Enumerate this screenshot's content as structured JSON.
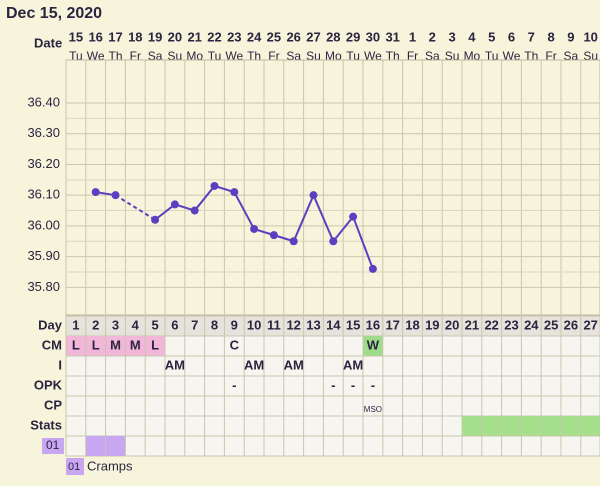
{
  "header": {
    "title": "Dec 15, 2020"
  },
  "chart_data": {
    "type": "line",
    "x_label": "Date",
    "categories": [
      "15",
      "16",
      "17",
      "18",
      "19",
      "20",
      "21",
      "22",
      "23",
      "24",
      "25",
      "26",
      "27",
      "28",
      "29",
      "30",
      "31",
      "1",
      "2",
      "3",
      "4",
      "5",
      "6",
      "7",
      "8",
      "9",
      "10"
    ],
    "weekdays": [
      "Tu",
      "We",
      "Th",
      "Fr",
      "Sa",
      "Su",
      "Mo",
      "Tu",
      "We",
      "Th",
      "Fr",
      "Sa",
      "Su",
      "Mo",
      "Tu",
      "We",
      "Th",
      "Fr",
      "Sa",
      "Su",
      "Mo",
      "Tu",
      "We",
      "Th",
      "Fr",
      "Sa",
      "Su"
    ],
    "series": [
      {
        "name": "Temperature",
        "color": "#5a3fc0",
        "values": [
          null,
          36.11,
          36.1,
          null,
          36.02,
          36.07,
          36.05,
          36.13,
          36.11,
          35.99,
          35.97,
          35.95,
          36.1,
          35.95,
          36.03,
          35.86,
          null,
          null,
          null,
          null,
          null,
          null,
          null,
          null,
          null,
          null,
          null
        ]
      }
    ],
    "ylim": [
      35.71,
      36.54
    ],
    "yticks": [
      {
        "value": 35.8,
        "label": "35.80"
      },
      {
        "value": 35.9,
        "label": "35.90"
      },
      {
        "value": 36.0,
        "label": "36.00"
      },
      {
        "value": 36.1,
        "label": "36.10"
      },
      {
        "value": 36.2,
        "label": "36.20"
      },
      {
        "value": 36.3,
        "label": "36.30"
      },
      {
        "value": 36.4,
        "label": "36.40"
      }
    ],
    "grid": true
  },
  "table": {
    "rows": [
      {
        "label": "Day",
        "cells": [
          1,
          2,
          3,
          4,
          5,
          6,
          7,
          8,
          9,
          10,
          11,
          12,
          13,
          14,
          15,
          16,
          17,
          18,
          19,
          20,
          21,
          22,
          23,
          24,
          25,
          26,
          27
        ],
        "colors": null
      },
      {
        "label": "CM",
        "cells": [
          "L",
          "L",
          "M",
          "M",
          "L",
          null,
          null,
          null,
          "C",
          null,
          null,
          null,
          null,
          null,
          null,
          "W",
          null,
          null,
          null,
          null,
          null,
          null,
          null,
          null,
          null,
          null,
          null
        ],
        "colors": [
          "#f2b6d8",
          "#f2b6d8",
          "#f2b6d8",
          "#f2b6d8",
          "#f2b6d8",
          null,
          null,
          null,
          null,
          null,
          null,
          null,
          null,
          null,
          null,
          "#9edc8c",
          null,
          null,
          null,
          null,
          null,
          null,
          null,
          null,
          null,
          null,
          null
        ]
      },
      {
        "label": "I",
        "cells": [
          null,
          null,
          null,
          null,
          null,
          "AM",
          null,
          null,
          null,
          "AM",
          null,
          "AM",
          null,
          null,
          "AM",
          null,
          null,
          null,
          null,
          null,
          null,
          null,
          null,
          null,
          null,
          null,
          null
        ],
        "colors": null
      },
      {
        "label": "OPK",
        "cells": [
          null,
          null,
          null,
          null,
          null,
          null,
          null,
          null,
          "-",
          null,
          null,
          null,
          null,
          "-",
          "-",
          "-",
          null,
          null,
          null,
          null,
          null,
          null,
          null,
          null,
          null,
          null,
          null
        ],
        "colors": null
      },
      {
        "label": "CP",
        "cells": [
          null,
          null,
          null,
          null,
          null,
          null,
          null,
          null,
          null,
          null,
          null,
          null,
          null,
          null,
          null,
          "MSO",
          null,
          null,
          null,
          null,
          null,
          null,
          null,
          null,
          null,
          null,
          null
        ],
        "colors": null
      },
      {
        "label": "Stats",
        "cells": [
          null,
          null,
          null,
          null,
          null,
          null,
          null,
          null,
          null,
          null,
          null,
          null,
          null,
          null,
          null,
          null,
          null,
          null,
          null,
          null,
          null,
          null,
          null,
          null,
          null,
          null,
          null
        ],
        "colors": [
          null,
          null,
          null,
          null,
          null,
          null,
          null,
          null,
          null,
          null,
          null,
          null,
          null,
          null,
          null,
          null,
          null,
          null,
          null,
          null,
          "#a6e08c",
          "#a6e08c",
          "#a6e08c",
          "#a6e08c",
          "#a6e08c",
          "#a6e08c",
          "#a6e08c"
        ]
      },
      {
        "label": "01",
        "cells": [
          null,
          null,
          null,
          null,
          null,
          null,
          null,
          null,
          null,
          null,
          null,
          null,
          null,
          null,
          null,
          null,
          null,
          null,
          null,
          null,
          null,
          null,
          null,
          null,
          null,
          null,
          null
        ],
        "colors": [
          null,
          "#c9a6f2",
          "#c9a6f2",
          null,
          null,
          null,
          null,
          null,
          null,
          null,
          null,
          null,
          null,
          null,
          null,
          null,
          null,
          null,
          null,
          null,
          null,
          null,
          null,
          null,
          null,
          null,
          null
        ]
      }
    ]
  },
  "legend": {
    "code": "01",
    "text": "Cramps"
  }
}
